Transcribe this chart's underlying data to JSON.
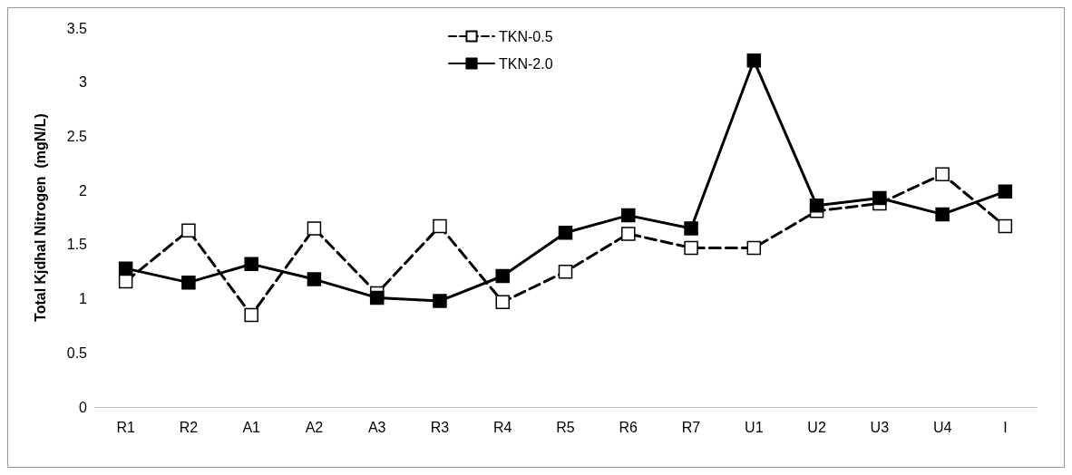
{
  "chart_data": {
    "type": "line",
    "ylabel": "Total Kjdhal Nitrogen  (mgN/L)",
    "categories": [
      "R1",
      "R2",
      "A1",
      "A2",
      "A3",
      "R3",
      "R4",
      "R5",
      "R6",
      "R7",
      "U1",
      "U2",
      "U3",
      "U4",
      "I"
    ],
    "series": [
      {
        "name": "TKN-0.5",
        "color": "#000000",
        "line_style": "dashed",
        "values": [
          1.16,
          1.63,
          0.85,
          1.65,
          1.05,
          1.67,
          0.97,
          1.25,
          1.6,
          1.47,
          1.47,
          1.81,
          1.88,
          2.15,
          1.67
        ]
      },
      {
        "name": "TKN-2.0",
        "color": "#000000",
        "line_style": "solid",
        "values": [
          1.28,
          1.15,
          1.32,
          1.18,
          1.01,
          0.98,
          1.21,
          1.61,
          1.77,
          1.65,
          3.2,
          1.86,
          1.93,
          1.78,
          1.99
        ]
      }
    ],
    "ylim": [
      0,
      3.5
    ],
    "yticks": [
      0,
      0.5,
      1,
      1.5,
      2,
      2.5,
      3,
      3.5
    ],
    "marker": "square",
    "grid": false,
    "legend": "top"
  }
}
